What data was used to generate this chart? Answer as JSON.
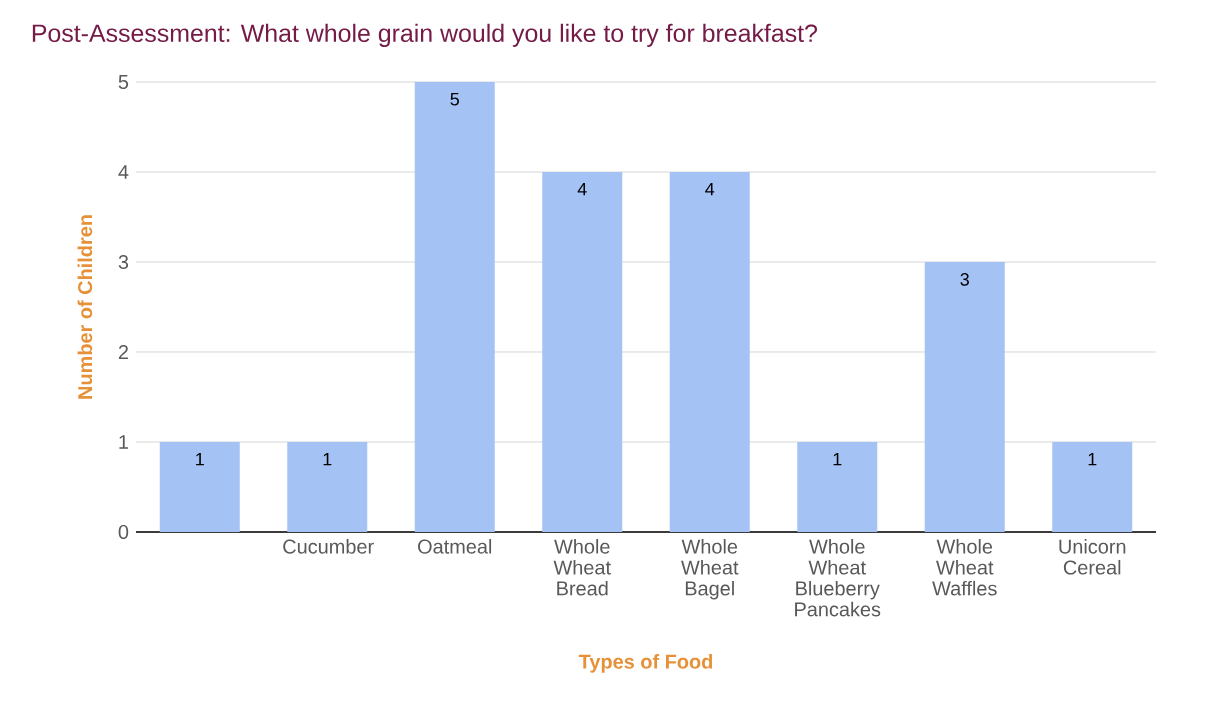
{
  "chart_data": {
    "type": "bar",
    "title": "Post-Assessment: What whole grain would you like to try for breakfast?",
    "xlabel": "Types of Food",
    "ylabel": "Number of Children",
    "categories": [
      null,
      "Cucumber",
      "Oatmeal",
      "Whole Wheat Bread",
      "Whole Wheat Bagel",
      "Whole Wheat Blueberry Pancakes",
      "Whole Wheat Waffles",
      "Unicorn Cereal"
    ],
    "values": [
      1,
      1,
      5,
      4,
      4,
      1,
      3,
      1
    ],
    "color": "#a4c2f4",
    "ylim": [
      0,
      5
    ],
    "yticks": [
      0,
      1,
      2,
      3,
      4,
      5
    ],
    "grid": "y",
    "data_labels": true
  }
}
